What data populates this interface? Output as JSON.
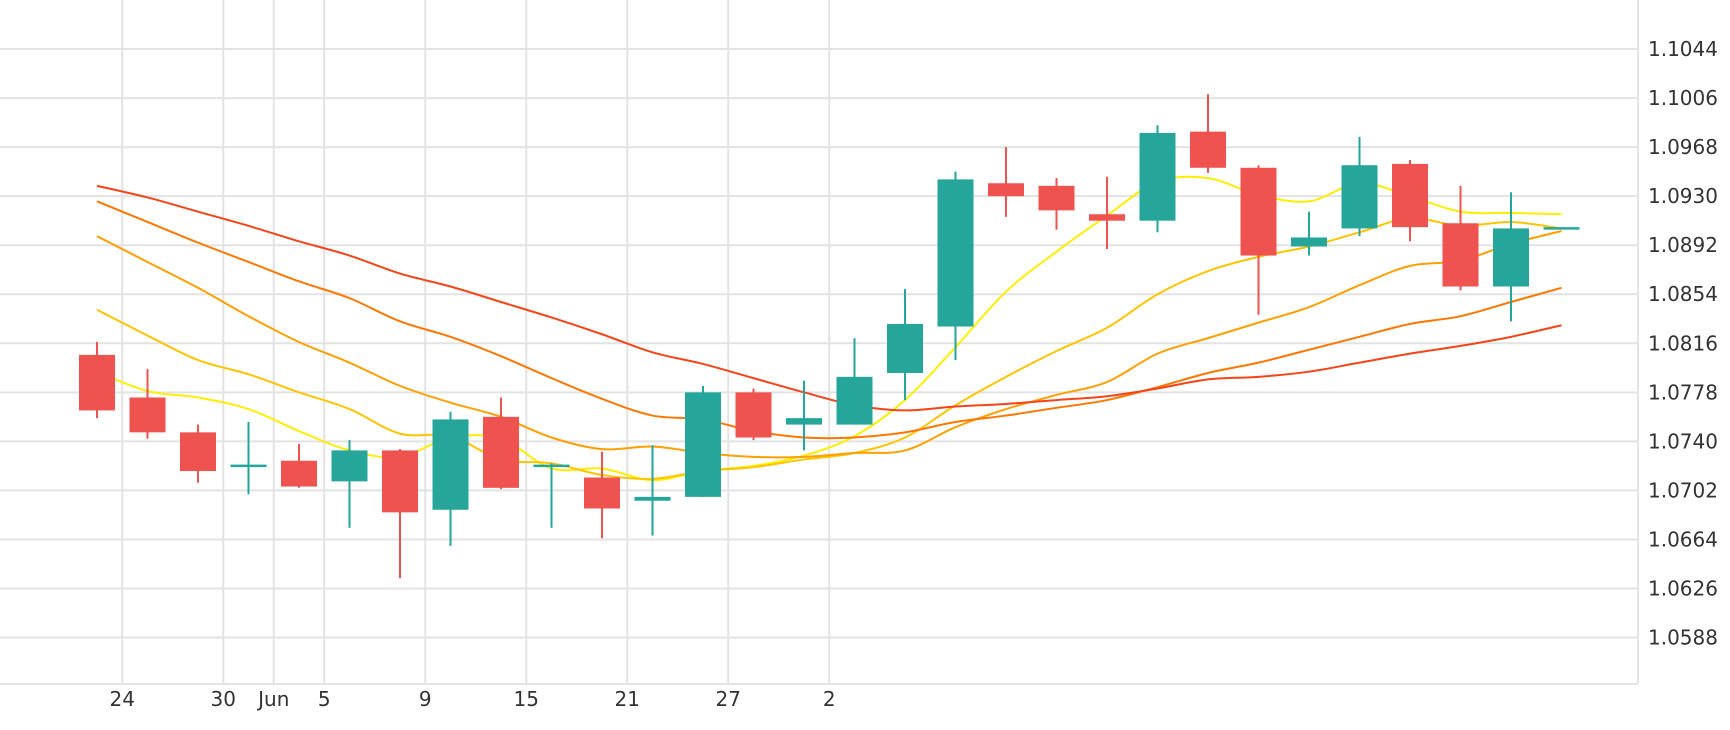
{
  "chart_data": {
    "type": "candlestick",
    "title": "",
    "xlabel": "",
    "ylabel": "",
    "grid": true,
    "legend": "none",
    "ylim": [
      1.0552,
      1.1082
    ],
    "y_ticks": [
      "1.1044",
      "1.1006",
      "1.0968",
      "1.0930",
      "1.0892",
      "1.0854",
      "1.0816",
      "1.0778",
      "1.0740",
      "1.0702",
      "1.0664",
      "1.0626",
      "1.0588"
    ],
    "x_ticks": [
      {
        "label": "24",
        "index": 0.5
      },
      {
        "label": "30",
        "index": 2.5
      },
      {
        "label": "Jun",
        "index": 3.5
      },
      {
        "label": "5",
        "index": 4.5
      },
      {
        "label": "9",
        "index": 6.5
      },
      {
        "label": "15",
        "index": 8.5
      },
      {
        "label": "21",
        "index": 10.5
      },
      {
        "label": "27",
        "index": 12.5
      },
      {
        "label": "2",
        "index": 14.5
      }
    ],
    "colors": {
      "up": "#26a69a",
      "down": "#ef5350",
      "grid": "#e3e3e3",
      "ma": [
        "#ffee00",
        "#ffc400",
        "#ff9f00",
        "#ff7700",
        "#f44418"
      ]
    },
    "candles": [
      {
        "open": 1.0807,
        "high": 1.0817,
        "low": 1.0758,
        "close": 1.0764
      },
      {
        "open": 1.0774,
        "high": 1.0796,
        "low": 1.0742,
        "close": 1.0747
      },
      {
        "open": 1.0747,
        "high": 1.0753,
        "low": 1.0708,
        "close": 1.0717
      },
      {
        "open": 1.0721,
        "high": 1.0755,
        "low": 1.0699,
        "close": 1.0722
      },
      {
        "open": 1.0725,
        "high": 1.0738,
        "low": 1.0704,
        "close": 1.0705
      },
      {
        "open": 1.0709,
        "high": 1.0741,
        "low": 1.0673,
        "close": 1.0733
      },
      {
        "open": 1.0733,
        "high": 1.0734,
        "low": 1.0634,
        "close": 1.0685
      },
      {
        "open": 1.0687,
        "high": 1.0763,
        "low": 1.0659,
        "close": 1.0757
      },
      {
        "open": 1.0759,
        "high": 1.0774,
        "low": 1.0703,
        "close": 1.0704
      },
      {
        "open": 1.0722,
        "high": 1.0723,
        "low": 1.0673,
        "close": 1.0722
      },
      {
        "open": 1.0712,
        "high": 1.0732,
        "low": 1.0665,
        "close": 1.0688
      },
      {
        "open": 1.0694,
        "high": 1.0737,
        "low": 1.0667,
        "close": 1.0697
      },
      {
        "open": 1.0697,
        "high": 1.0783,
        "low": 1.0697,
        "close": 1.0778
      },
      {
        "open": 1.0778,
        "high": 1.0781,
        "low": 1.0741,
        "close": 1.0743
      },
      {
        "open": 1.0753,
        "high": 1.0787,
        "low": 1.0733,
        "close": 1.0758
      },
      {
        "open": 1.0753,
        "high": 1.082,
        "low": 1.0753,
        "close": 1.079
      },
      {
        "open": 1.0793,
        "high": 1.0858,
        "low": 1.0772,
        "close": 1.0831
      },
      {
        "open": 1.0829,
        "high": 1.0949,
        "low": 1.0803,
        "close": 1.0943
      },
      {
        "open": 1.094,
        "high": 1.0968,
        "low": 1.0914,
        "close": 1.093
      },
      {
        "open": 1.0938,
        "high": 1.0944,
        "low": 1.0904,
        "close": 1.0919
      },
      {
        "open": 1.0916,
        "high": 1.0945,
        "low": 1.0889,
        "close": 1.0911
      },
      {
        "open": 1.0911,
        "high": 1.0985,
        "low": 1.0902,
        "close": 1.0979
      },
      {
        "open": 1.098,
        "high": 1.1009,
        "low": 1.0948,
        "close": 1.0952
      },
      {
        "open": 1.0952,
        "high": 1.0954,
        "low": 1.0838,
        "close": 1.0884
      },
      {
        "open": 1.0891,
        "high": 1.0918,
        "low": 1.0884,
        "close": 1.0898
      },
      {
        "open": 1.0905,
        "high": 1.0976,
        "low": 1.0899,
        "close": 1.0954
      },
      {
        "open": 1.0955,
        "high": 1.0958,
        "low": 1.0895,
        "close": 1.0906
      },
      {
        "open": 1.0909,
        "high": 1.0938,
        "low": 1.0857,
        "close": 1.086
      },
      {
        "open": 1.086,
        "high": 1.0933,
        "low": 1.0833,
        "close": 1.0905
      },
      {
        "open": 1.0906,
        "high": 1.0906,
        "low": 1.0906,
        "close": 1.0906
      }
    ],
    "moving_averages": [
      {
        "color": "#ffee00",
        "values": [
          1.0794,
          1.0779,
          1.0774,
          1.0765,
          1.0748,
          1.0733,
          1.0728,
          1.0743,
          1.0742,
          1.0719,
          1.0719,
          1.071,
          1.0717,
          1.0721,
          1.0729,
          1.0744,
          1.0772,
          1.0813,
          1.0856,
          1.0887,
          1.0915,
          1.0941,
          1.0944,
          1.0931,
          1.0926,
          1.094,
          1.093,
          1.0918,
          1.0917,
          1.0916
        ]
      },
      {
        "color": "#ffc400",
        "values": [
          1.0842,
          1.0822,
          1.0803,
          1.0792,
          1.0778,
          1.0765,
          1.0746,
          1.0744,
          1.0726,
          1.0723,
          1.0714,
          1.0711,
          1.0717,
          1.072,
          1.0726,
          1.0731,
          1.0743,
          1.0768,
          1.079,
          1.081,
          1.0828,
          1.0854,
          1.0872,
          1.0883,
          1.0891,
          1.0902,
          1.0913,
          1.0907,
          1.091,
          1.0905
        ]
      },
      {
        "color": "#ff9f00",
        "values": [
          1.0899,
          1.0879,
          1.0859,
          1.0837,
          1.0817,
          1.0801,
          1.0783,
          1.077,
          1.0759,
          1.0743,
          1.0734,
          1.0736,
          1.0731,
          1.0728,
          1.0728,
          1.0731,
          1.0733,
          1.0751,
          1.0765,
          1.0776,
          1.0786,
          1.0808,
          1.082,
          1.0832,
          1.0844,
          1.0861,
          1.0876,
          1.088,
          1.0893,
          1.0903
        ]
      },
      {
        "color": "#ff7700",
        "values": [
          1.0926,
          1.091,
          1.0894,
          1.0879,
          1.0864,
          1.0851,
          1.0833,
          1.0821,
          1.0806,
          1.0789,
          1.0773,
          1.076,
          1.0757,
          1.0748,
          1.0743,
          1.0743,
          1.0747,
          1.0755,
          1.076,
          1.0766,
          1.0772,
          1.0782,
          1.0793,
          1.0801,
          1.0811,
          1.0821,
          1.0831,
          1.0837,
          1.0848,
          1.0859
        ]
      },
      {
        "color": "#f44418",
        "values": [
          1.0938,
          1.0929,
          1.0918,
          1.0907,
          1.0895,
          1.0884,
          1.087,
          1.086,
          1.0848,
          1.0836,
          1.0823,
          1.0809,
          1.08,
          1.0789,
          1.0778,
          1.0768,
          1.0764,
          1.0767,
          1.0769,
          1.0772,
          1.0775,
          1.0781,
          1.0788,
          1.079,
          1.0794,
          1.0801,
          1.0808,
          1.0814,
          1.0821,
          1.083
        ]
      }
    ]
  }
}
